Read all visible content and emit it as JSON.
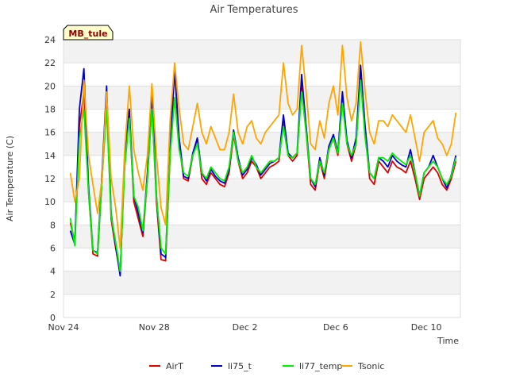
{
  "chart_data": {
    "type": "line",
    "title": "Air Temperatures",
    "xlabel": "Time",
    "ylabel": "Air Temperature (C)",
    "site_label": "MB_tule",
    "xlim": [
      0,
      17.5
    ],
    "ylim": [
      0,
      24
    ],
    "y_ticks": [
      0,
      2,
      4,
      6,
      8,
      10,
      12,
      14,
      16,
      18,
      20,
      22,
      24
    ],
    "x_ticks": [
      {
        "day": 0,
        "label": "Nov 24"
      },
      {
        "day": 4,
        "label": "Nov 28"
      },
      {
        "day": 8,
        "label": "Dec 2"
      },
      {
        "day": 12,
        "label": "Dec 6"
      },
      {
        "day": 16,
        "label": "Dec 10"
      }
    ],
    "grid": true,
    "legend": "bottom",
    "x": [
      0.3,
      0.5,
      0.7,
      0.9,
      1.1,
      1.3,
      1.5,
      1.7,
      1.9,
      2.1,
      2.3,
      2.5,
      2.7,
      2.9,
      3.1,
      3.3,
      3.5,
      3.7,
      3.9,
      4.1,
      4.3,
      4.5,
      4.7,
      4.9,
      5.1,
      5.3,
      5.5,
      5.7,
      5.9,
      6.1,
      6.3,
      6.5,
      6.7,
      6.9,
      7.1,
      7.3,
      7.5,
      7.7,
      7.9,
      8.1,
      8.3,
      8.5,
      8.7,
      8.9,
      9.1,
      9.3,
      9.5,
      9.7,
      9.9,
      10.1,
      10.3,
      10.5,
      10.7,
      10.9,
      11.1,
      11.3,
      11.5,
      11.7,
      11.9,
      12.1,
      12.3,
      12.5,
      12.7,
      12.9,
      13.1,
      13.3,
      13.5,
      13.7,
      13.9,
      14.1,
      14.3,
      14.5,
      14.7,
      14.9,
      15.1,
      15.3,
      15.5,
      15.7,
      15.9,
      16.1,
      16.3,
      16.5,
      16.7,
      16.9,
      17.1,
      17.3
    ],
    "series": [
      {
        "name": "AirT",
        "color": "#dd0000",
        "values": [
          8.2,
          6.5,
          16.5,
          19.5,
          11.0,
          5.5,
          5.3,
          12.0,
          19.0,
          8.5,
          6.0,
          3.8,
          13.5,
          17.5,
          10.0,
          8.5,
          7.0,
          12.0,
          18.5,
          10.0,
          5.0,
          4.9,
          14.0,
          21.5,
          15.0,
          12.0,
          11.8,
          14.0,
          15.5,
          12.0,
          11.5,
          12.5,
          12.0,
          11.5,
          11.3,
          12.5,
          15.8,
          13.5,
          12.0,
          12.5,
          13.5,
          13.0,
          12.0,
          12.5,
          13.0,
          13.2,
          13.5,
          17.0,
          14.0,
          13.5,
          14.0,
          20.0,
          16.0,
          11.5,
          11.0,
          13.5,
          12.0,
          14.5,
          15.5,
          14.0,
          19.0,
          15.0,
          13.5,
          15.0,
          21.0,
          16.0,
          12.0,
          11.5,
          13.5,
          13.0,
          12.5,
          13.5,
          13.0,
          12.8,
          12.5,
          13.5,
          12.0,
          10.2,
          12.0,
          12.5,
          13.0,
          12.5,
          11.5,
          11.0,
          12.0,
          13.5
        ]
      },
      {
        "name": "li75_t",
        "color": "#0000cc",
        "values": [
          7.5,
          6.3,
          18.0,
          21.5,
          11.5,
          5.8,
          5.6,
          12.5,
          20.0,
          9.0,
          6.2,
          3.6,
          14.0,
          18.0,
          10.5,
          9.0,
          7.3,
          12.5,
          20.0,
          10.5,
          5.5,
          5.2,
          14.5,
          21.5,
          15.5,
          12.2,
          12.0,
          14.2,
          15.5,
          12.5,
          11.8,
          12.8,
          12.2,
          11.8,
          11.6,
          12.8,
          16.2,
          13.8,
          12.3,
          12.8,
          13.8,
          13.2,
          12.3,
          12.8,
          13.3,
          13.5,
          13.8,
          17.5,
          14.2,
          13.8,
          14.2,
          21.0,
          16.5,
          12.0,
          11.3,
          13.8,
          12.3,
          14.8,
          15.8,
          14.3,
          19.5,
          15.3,
          13.8,
          15.5,
          21.8,
          16.5,
          12.5,
          12.0,
          13.8,
          13.5,
          13.0,
          14.0,
          13.5,
          13.2,
          13.0,
          14.5,
          12.5,
          10.5,
          12.5,
          13.0,
          14.0,
          13.0,
          12.0,
          11.2,
          12.3,
          14.0
        ]
      },
      {
        "name": "li77_temp",
        "color": "#00ee00",
        "values": [
          8.6,
          6.2,
          15.5,
          18.0,
          11.0,
          5.8,
          5.5,
          12.0,
          18.0,
          8.8,
          6.5,
          4.0,
          13.0,
          17.2,
          10.5,
          9.5,
          7.5,
          12.0,
          18.0,
          10.5,
          6.0,
          5.5,
          14.0,
          19.0,
          14.5,
          12.5,
          12.2,
          14.0,
          15.0,
          12.5,
          12.0,
          13.0,
          12.5,
          12.0,
          11.8,
          13.0,
          16.0,
          13.5,
          12.5,
          13.0,
          14.0,
          13.0,
          12.5,
          13.0,
          13.5,
          13.5,
          13.8,
          16.5,
          14.0,
          13.8,
          14.2,
          19.5,
          16.0,
          12.0,
          11.5,
          13.5,
          12.5,
          14.5,
          15.5,
          14.2,
          18.5,
          15.0,
          14.0,
          15.0,
          20.5,
          15.5,
          12.5,
          12.0,
          13.8,
          13.8,
          13.5,
          14.2,
          13.8,
          13.5,
          13.2,
          14.0,
          12.5,
          10.5,
          12.5,
          13.0,
          13.5,
          13.0,
          12.0,
          11.5,
          12.2,
          13.8
        ]
      },
      {
        "name": "Tsonic",
        "color": "#ffa500",
        "values": [
          12.5,
          10.0,
          12.0,
          20.5,
          14.0,
          11.5,
          9.0,
          12.0,
          19.5,
          12.0,
          9.5,
          6.0,
          14.5,
          20.0,
          14.5,
          12.5,
          11.0,
          14.0,
          20.2,
          14.0,
          9.5,
          8.0,
          17.0,
          22.0,
          18.0,
          15.0,
          14.5,
          16.5,
          18.5,
          16.0,
          15.0,
          16.5,
          15.5,
          14.5,
          14.5,
          16.0,
          19.3,
          16.0,
          15.0,
          16.5,
          17.0,
          15.5,
          15.0,
          16.0,
          16.5,
          17.0,
          17.5,
          22.0,
          18.5,
          17.5,
          18.0,
          23.5,
          19.5,
          15.0,
          14.5,
          17.0,
          15.5,
          18.5,
          20.0,
          17.5,
          23.5,
          19.0,
          17.0,
          18.5,
          23.8,
          19.5,
          16.0,
          15.0,
          17.0,
          17.0,
          16.5,
          17.5,
          17.0,
          16.5,
          16.0,
          17.5,
          15.5,
          13.5,
          16.0,
          16.5,
          17.0,
          15.5,
          15.0,
          14.0,
          15.0,
          17.7
        ]
      }
    ]
  }
}
